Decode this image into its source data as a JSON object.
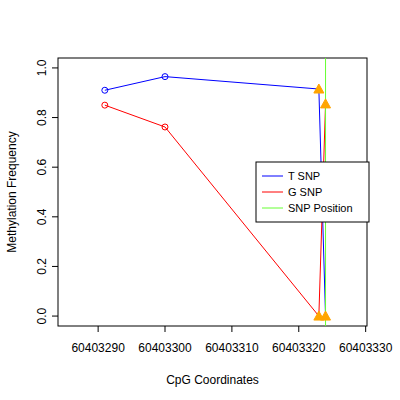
{
  "chart_data": {
    "type": "line",
    "x_label": "CpG Coordinates",
    "y_label": "Methylation Frequency",
    "x": [
      60403291,
      60403300,
      60403323,
      60403324
    ],
    "series": [
      {
        "name": "T SNP",
        "color": "#0000ff",
        "marker": "circle",
        "values": [
          0.91,
          0.965,
          0.915,
          0.0
        ]
      },
      {
        "name": "G SNP",
        "color": "#ff0000",
        "marker": "circle",
        "values": [
          0.85,
          0.762,
          0.0,
          0.855
        ]
      }
    ],
    "snp_position": {
      "name": "SNP Position",
      "color": "#66ff33",
      "x": 60403324
    },
    "xlim": [
      60403284,
      60403330.2
    ],
    "ylim": [
      -0.04,
      1.04
    ],
    "xticks": [
      60403290,
      60403300,
      60403310,
      60403320,
      60403330
    ],
    "yticks": [
      {
        "value": 0,
        "label": "0.0"
      },
      0.2,
      0.4,
      0.6,
      0.8,
      {
        "value": 1,
        "label": "1.0"
      }
    ],
    "legend": "right",
    "grid": false
  }
}
